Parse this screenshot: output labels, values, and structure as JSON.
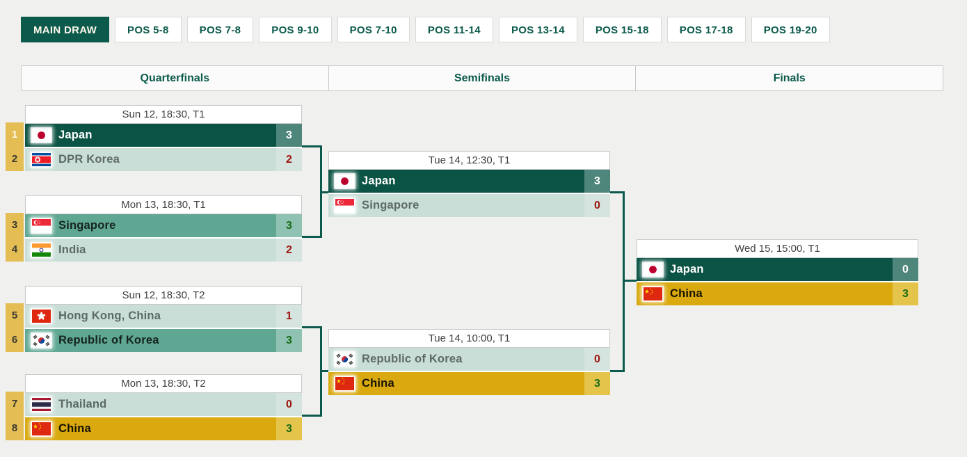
{
  "tabs": [
    {
      "label": "MAIN DRAW",
      "active": true
    },
    {
      "label": "POS 5-8",
      "active": false
    },
    {
      "label": "POS 7-8",
      "active": false
    },
    {
      "label": "POS 9-10",
      "active": false
    },
    {
      "label": "POS 7-10",
      "active": false
    },
    {
      "label": "POS 11-14",
      "active": false
    },
    {
      "label": "POS 13-14",
      "active": false
    },
    {
      "label": "POS 15-18",
      "active": false
    },
    {
      "label": "POS 17-18",
      "active": false
    },
    {
      "label": "POS 19-20",
      "active": false
    }
  ],
  "columns": {
    "quarterfinals": "Quarterfinals",
    "semifinals": "Semifinals",
    "finals": "Finals"
  },
  "colors": {
    "accent_dark_green": "#0b5a4b",
    "winner_dark_row": "#0b5345",
    "winner_teal_row": "#5fa793",
    "winner_gold_row": "#d9a90f",
    "loser_row": "#c9ded7",
    "seed_box": "#e4bd55",
    "score_win_green": "#186b16",
    "score_loss_red": "#9b150b",
    "active_tab": "#0b5a4b"
  },
  "matches": [
    {
      "round": "quarterfinal",
      "schedule": "Sun 12, 18:30, T1",
      "teams": [
        {
          "seed": "1",
          "name": "Japan",
          "flag": "jpn",
          "score": "3",
          "style": "winner-dark"
        },
        {
          "seed": "2",
          "name": "DPR Korea",
          "flag": "prk",
          "score": "2",
          "style": "loser"
        }
      ]
    },
    {
      "round": "quarterfinal",
      "schedule": "Mon 13, 18:30, T1",
      "teams": [
        {
          "seed": "3",
          "name": "Singapore",
          "flag": "sgp",
          "score": "3",
          "style": "winner-teal"
        },
        {
          "seed": "4",
          "name": "India",
          "flag": "ind",
          "score": "2",
          "style": "loser"
        }
      ]
    },
    {
      "round": "quarterfinal",
      "schedule": "Sun 12, 18:30, T2",
      "teams": [
        {
          "seed": "5",
          "name": "Hong Kong, China",
          "flag": "hkg",
          "score": "1",
          "style": "loser"
        },
        {
          "seed": "6",
          "name": "Republic of Korea",
          "flag": "kor",
          "score": "3",
          "style": "winner-teal"
        }
      ]
    },
    {
      "round": "quarterfinal",
      "schedule": "Mon 13, 18:30, T2",
      "teams": [
        {
          "seed": "7",
          "name": "Thailand",
          "flag": "tha",
          "score": "0",
          "style": "loser"
        },
        {
          "seed": "8",
          "name": "China",
          "flag": "chn",
          "score": "3",
          "style": "winner-gold"
        }
      ]
    },
    {
      "round": "semifinal",
      "schedule": "Tue 14, 12:30, T1",
      "teams": [
        {
          "seed": "",
          "name": "Japan",
          "flag": "jpn",
          "score": "3",
          "style": "winner-dark"
        },
        {
          "seed": "",
          "name": "Singapore",
          "flag": "sgp",
          "score": "0",
          "style": "loser"
        }
      ]
    },
    {
      "round": "semifinal",
      "schedule": "Tue 14, 10:00, T1",
      "teams": [
        {
          "seed": "",
          "name": "Republic of Korea",
          "flag": "kor",
          "score": "0",
          "style": "loser"
        },
        {
          "seed": "",
          "name": "China",
          "flag": "chn",
          "score": "3",
          "style": "winner-gold"
        }
      ]
    },
    {
      "round": "final",
      "schedule": "Wed 15, 15:00, T1",
      "teams": [
        {
          "seed": "",
          "name": "Japan",
          "flag": "jpn",
          "score": "0",
          "style": "winner-dark"
        },
        {
          "seed": "",
          "name": "China",
          "flag": "chn",
          "score": "3",
          "style": "winner-gold"
        }
      ]
    }
  ]
}
